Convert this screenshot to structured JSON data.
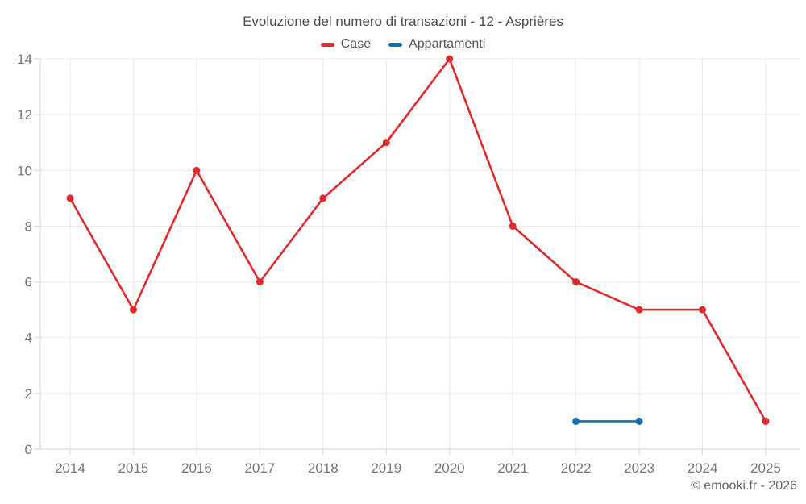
{
  "footer": "© emooki.fr - 2026",
  "chart_data": {
    "type": "line",
    "title": "Evoluzione del numero di transazioni - 12 - Asprières",
    "categories": [
      "2014",
      "2015",
      "2016",
      "2017",
      "2018",
      "2019",
      "2020",
      "2021",
      "2022",
      "2023",
      "2024",
      "2025"
    ],
    "series": [
      {
        "name": "Case",
        "color": "#e02b2e",
        "values": [
          9,
          5,
          10,
          6,
          9,
          11,
          14,
          8,
          6,
          5,
          5,
          1
        ]
      },
      {
        "name": "Appartamenti",
        "color": "#1571a9",
        "values": [
          null,
          null,
          null,
          null,
          null,
          null,
          null,
          null,
          1,
          1,
          null,
          null
        ]
      }
    ],
    "ylim": [
      0,
      14
    ],
    "yticks": [
      0,
      2,
      4,
      6,
      8,
      10,
      12,
      14
    ],
    "grid": true,
    "legend_position": "top",
    "xlabel": "",
    "ylabel": "",
    "colors": {
      "gridline": "#e9e9e9",
      "axis": "#d6d6d6",
      "tick_label": "#757575",
      "title_text": "#4d4d4d",
      "legend_text": "#555555",
      "footer_text": "#666666"
    }
  }
}
